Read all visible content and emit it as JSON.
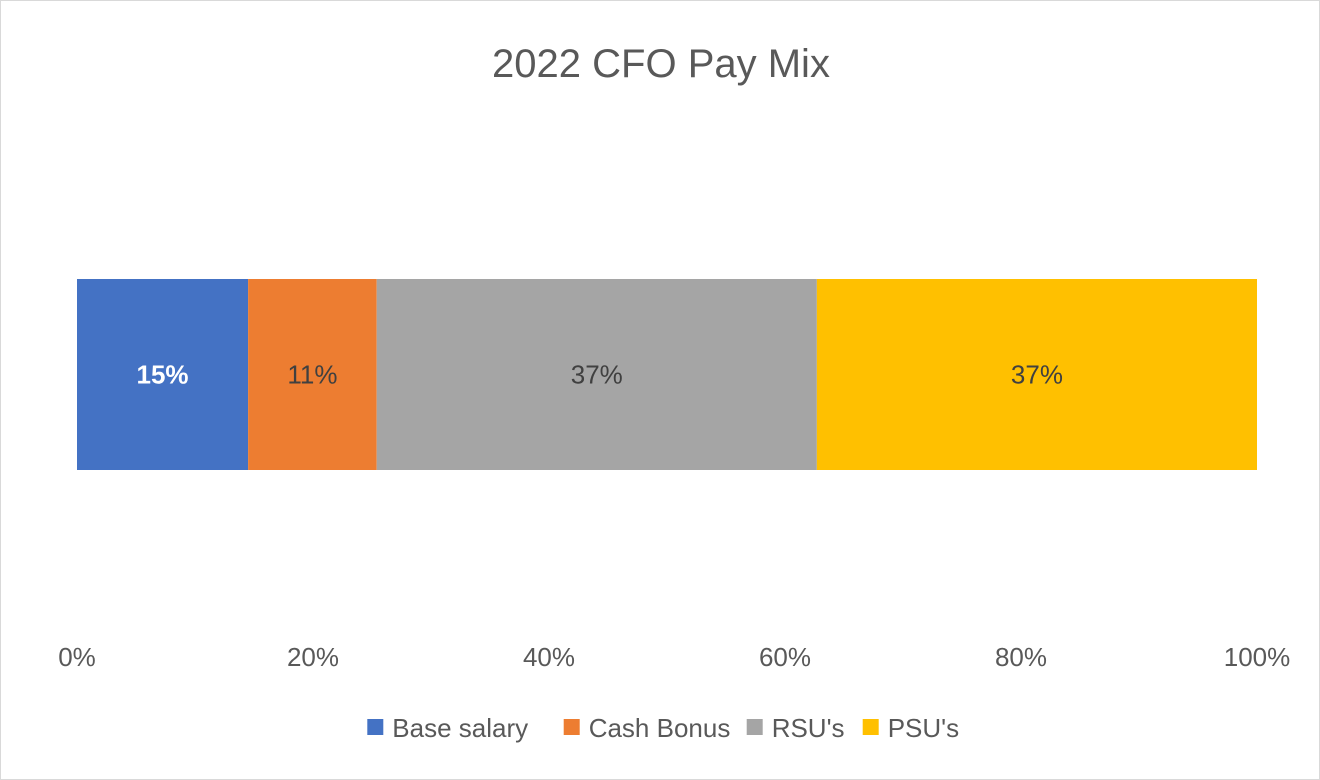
{
  "chart_data": {
    "type": "bar",
    "orientation": "horizontal",
    "stacking": "percent",
    "title": "2022 CFO Pay Mix",
    "xlabel": "",
    "ylabel": "",
    "xlim": [
      0,
      100
    ],
    "x_ticks": [
      "0%",
      "20%",
      "40%",
      "60%",
      "80%",
      "100%"
    ],
    "grid": false,
    "legend_position": "bottom",
    "series": [
      {
        "name": "Base salary",
        "value": 14.5,
        "label": "15%",
        "color": "#4472C4",
        "label_color": "#FFFFFF",
        "label_bold": true
      },
      {
        "name": "Cash Bonus",
        "value": 10.9,
        "label": "11%",
        "color": "#ED7D31",
        "label_color": "#404040",
        "label_bold": false
      },
      {
        "name": "RSU's",
        "value": 37.3,
        "label": "37%",
        "color": "#A5A5A5",
        "label_color": "#404040",
        "label_bold": false
      },
      {
        "name": "PSU's",
        "value": 37.3,
        "label": "37%",
        "color": "#FFC000",
        "label_color": "#404040",
        "label_bold": false
      }
    ]
  }
}
